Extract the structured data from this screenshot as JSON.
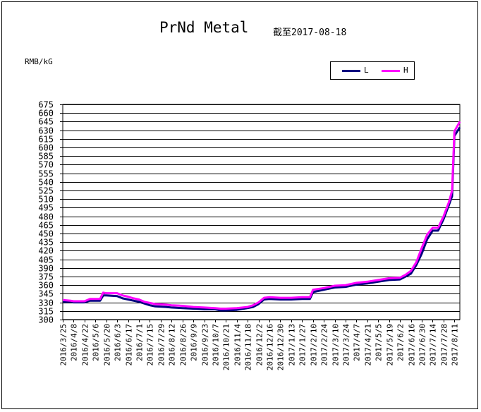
{
  "chart_data": {
    "type": "line",
    "title": "PrNd Metal",
    "subtitle": "截至2017-08-18",
    "ylabel": "RMB/kG",
    "ylim": [
      300,
      675
    ],
    "ystep": 15,
    "grid": true,
    "legend_position": "top-right",
    "xlim": [
      "2016-03-25",
      "2017-08-18"
    ],
    "x_tick_labels": [
      "2016/3/25",
      "2016/4/8",
      "2016/4/22",
      "2016/5/6",
      "2016/5/20",
      "2016/6/3",
      "2016/6/17",
      "2016/7/1",
      "2016/7/15",
      "2016/7/29",
      "2016/8/12",
      "2016/8/26",
      "2016/9/9",
      "2016/9/23",
      "2016/10/7",
      "2016/10/21",
      "2016/11/4",
      "2016/11/18",
      "2016/12/2",
      "2016/12/16",
      "2016/12/30",
      "2017/1/13",
      "2017/1/27",
      "2017/2/10",
      "2017/2/24",
      "2017/3/10",
      "2017/3/24",
      "2017/4/7",
      "2017/4/21",
      "2017/5/5",
      "2017/5/19",
      "2017/6/2",
      "2017/6/16",
      "2017/6/30",
      "2017/7/14",
      "2017/7/28",
      "2017/8/11"
    ],
    "series": [
      {
        "name": "L",
        "color": "#000080",
        "points": [
          [
            "2016-03-25",
            331
          ],
          [
            "2016-04-04",
            331
          ],
          [
            "2016-04-08",
            330
          ],
          [
            "2016-04-22",
            330
          ],
          [
            "2016-04-29",
            333
          ],
          [
            "2016-05-12",
            333
          ],
          [
            "2016-05-16",
            342
          ],
          [
            "2016-05-20",
            342
          ],
          [
            "2016-06-03",
            341
          ],
          [
            "2016-06-10",
            337
          ],
          [
            "2016-06-17",
            335
          ],
          [
            "2016-06-24",
            333
          ],
          [
            "2016-07-01",
            331
          ],
          [
            "2016-07-08",
            328
          ],
          [
            "2016-07-15",
            325
          ],
          [
            "2016-07-22",
            323
          ],
          [
            "2016-08-05",
            322
          ],
          [
            "2016-08-12",
            321
          ],
          [
            "2016-08-26",
            320
          ],
          [
            "2016-09-09",
            319
          ],
          [
            "2016-09-23",
            318
          ],
          [
            "2016-10-07",
            318
          ],
          [
            "2016-10-14",
            316
          ],
          [
            "2016-10-21",
            316
          ],
          [
            "2016-11-04",
            317
          ],
          [
            "2016-11-18",
            320
          ],
          [
            "2016-11-25",
            322
          ],
          [
            "2016-12-02",
            327
          ],
          [
            "2016-12-09",
            335
          ],
          [
            "2016-12-16",
            336
          ],
          [
            "2016-12-30",
            335
          ],
          [
            "2017-01-13",
            335
          ],
          [
            "2017-01-27",
            336
          ],
          [
            "2017-02-06",
            336
          ],
          [
            "2017-02-10",
            348
          ],
          [
            "2017-02-24",
            352
          ],
          [
            "2017-03-10",
            356
          ],
          [
            "2017-03-24",
            357
          ],
          [
            "2017-04-07",
            361
          ],
          [
            "2017-04-21",
            363
          ],
          [
            "2017-05-05",
            366
          ],
          [
            "2017-05-19",
            369
          ],
          [
            "2017-06-02",
            370
          ],
          [
            "2017-06-09",
            375
          ],
          [
            "2017-06-16",
            380
          ],
          [
            "2017-06-23",
            395
          ],
          [
            "2017-06-30",
            415
          ],
          [
            "2017-07-07",
            440
          ],
          [
            "2017-07-14",
            455
          ],
          [
            "2017-07-21",
            455
          ],
          [
            "2017-07-28",
            475
          ],
          [
            "2017-08-04",
            500
          ],
          [
            "2017-08-08",
            515
          ],
          [
            "2017-08-11",
            620
          ],
          [
            "2017-08-18",
            635
          ]
        ]
      },
      {
        "name": "H",
        "color": "#ff00ff",
        "points": [
          [
            "2016-03-25",
            334
          ],
          [
            "2016-04-04",
            333
          ],
          [
            "2016-04-08",
            332
          ],
          [
            "2016-04-22",
            332
          ],
          [
            "2016-04-29",
            336
          ],
          [
            "2016-05-12",
            336
          ],
          [
            "2016-05-16",
            347
          ],
          [
            "2016-05-20",
            346
          ],
          [
            "2016-06-03",
            346
          ],
          [
            "2016-06-10",
            342
          ],
          [
            "2016-06-17",
            340
          ],
          [
            "2016-06-24",
            337
          ],
          [
            "2016-07-01",
            335
          ],
          [
            "2016-07-08",
            331
          ],
          [
            "2016-07-15",
            329
          ],
          [
            "2016-07-22",
            327
          ],
          [
            "2016-08-05",
            326
          ],
          [
            "2016-08-12",
            325
          ],
          [
            "2016-08-26",
            324
          ],
          [
            "2016-09-09",
            322
          ],
          [
            "2016-09-23",
            321
          ],
          [
            "2016-10-07",
            320
          ],
          [
            "2016-10-14",
            319
          ],
          [
            "2016-10-21",
            319
          ],
          [
            "2016-11-04",
            320
          ],
          [
            "2016-11-18",
            322
          ],
          [
            "2016-11-25",
            325
          ],
          [
            "2016-12-02",
            330
          ],
          [
            "2016-12-09",
            338
          ],
          [
            "2016-12-16",
            339
          ],
          [
            "2016-12-30",
            338
          ],
          [
            "2017-01-13",
            338
          ],
          [
            "2017-01-27",
            339
          ],
          [
            "2017-02-06",
            339
          ],
          [
            "2017-02-10",
            352
          ],
          [
            "2017-02-24",
            355
          ],
          [
            "2017-03-10",
            359
          ],
          [
            "2017-03-24",
            360
          ],
          [
            "2017-04-07",
            364
          ],
          [
            "2017-04-21",
            366
          ],
          [
            "2017-05-05",
            369
          ],
          [
            "2017-05-19",
            372
          ],
          [
            "2017-06-02",
            373
          ],
          [
            "2017-06-09",
            378
          ],
          [
            "2017-06-16",
            385
          ],
          [
            "2017-06-23",
            400
          ],
          [
            "2017-06-30",
            425
          ],
          [
            "2017-07-07",
            448
          ],
          [
            "2017-07-14",
            460
          ],
          [
            "2017-07-21",
            460
          ],
          [
            "2017-07-28",
            480
          ],
          [
            "2017-08-04",
            505
          ],
          [
            "2017-08-08",
            525
          ],
          [
            "2017-08-11",
            628
          ],
          [
            "2017-08-18",
            645
          ]
        ]
      }
    ]
  }
}
